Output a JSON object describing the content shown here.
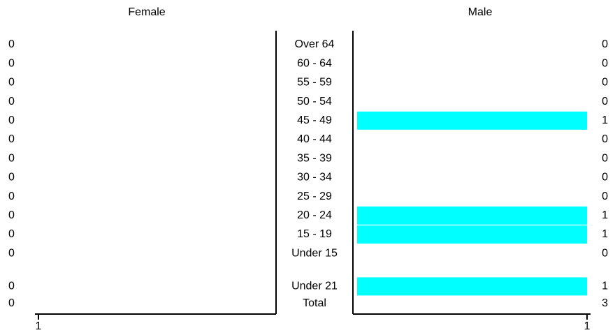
{
  "chart_data": {
    "type": "pyramid",
    "categories": [
      "Over 64",
      "60 - 64",
      "55 - 59",
      "50 - 54",
      "45 - 49",
      "40 - 44",
      "35 - 39",
      "30 - 34",
      "25 - 29",
      "20 - 24",
      "15 - 19",
      "Under 15",
      "Under 21"
    ],
    "total_label": "Total",
    "series": [
      {
        "name": "Female",
        "color": "#00ffff",
        "values": [
          0,
          0,
          0,
          0,
          0,
          0,
          0,
          0,
          0,
          0,
          0,
          0,
          0
        ],
        "total": 0
      },
      {
        "name": "Male",
        "color": "#00ffff",
        "values": [
          0,
          0,
          0,
          0,
          1,
          0,
          0,
          0,
          0,
          1,
          1,
          0,
          1
        ],
        "total": 3
      }
    ],
    "xlim": [
      0,
      1
    ],
    "xticks": [
      1
    ]
  }
}
